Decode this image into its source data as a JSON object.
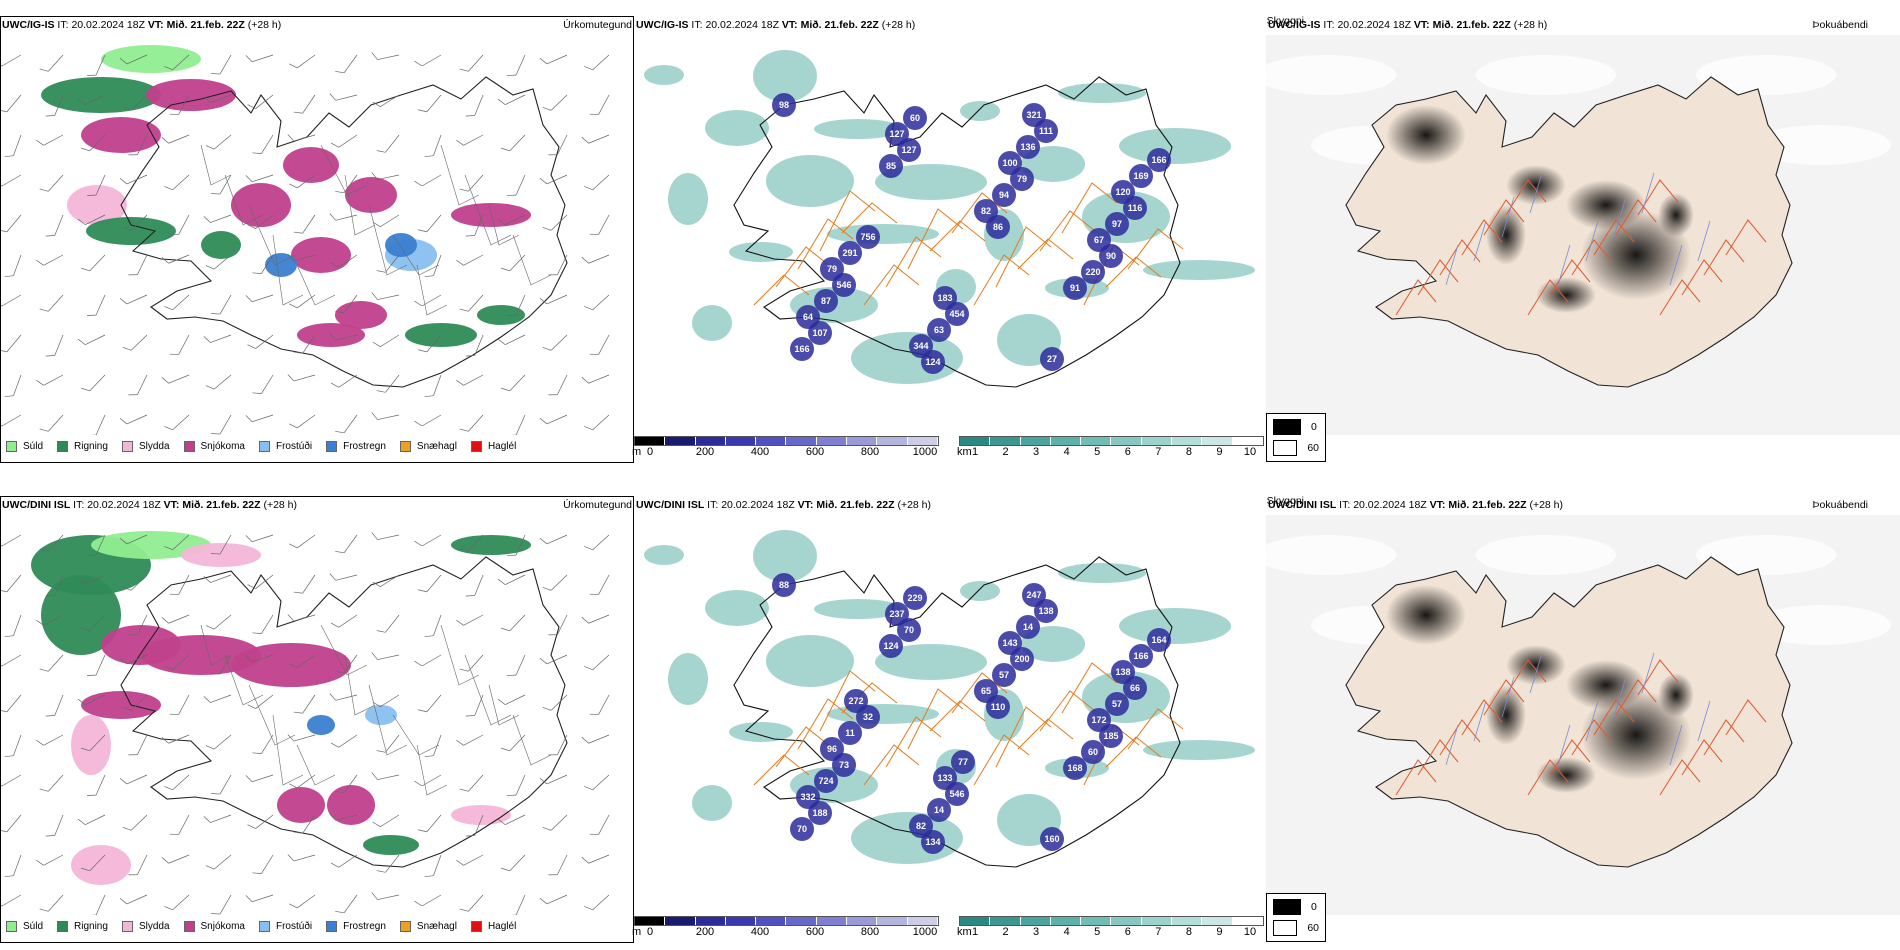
{
  "rows": [
    {
      "precip_panel": {
        "title_model": "UWC/IG-IS",
        "title_it_prefix": "IT:",
        "title_it": "20.02.2024 18Z",
        "title_vt_prefix": "VT:",
        "title_vt": "Mið. 21.feb. 22Z",
        "title_lead": "(+28 h)",
        "right_label": "Úrkomutegund"
      },
      "cloud_panel": {
        "title_model": "UWC/IG-IS",
        "title_it_prefix": "IT:",
        "title_it": "20.02.2024 18Z",
        "title_vt_prefix": "VT:",
        "title_vt": "Mið. 21.feb. 22Z",
        "title_lead": "(+28 h)",
        "right_label": "Skyggni",
        "max_labels": [
          "98",
          "85",
          "86",
          "91",
          "166",
          "127",
          "82",
          "220",
          "107",
          "127",
          "94",
          "90",
          "64",
          "60",
          "79",
          "67",
          "87",
          "124",
          "100",
          "97",
          "546",
          "344",
          "136",
          "116",
          "79",
          "63",
          "111",
          "120",
          "291",
          "454",
          "321",
          "169",
          "756",
          "183",
          "27",
          "166"
        ]
      },
      "fog_panel": {
        "title_model": "UWC/IG-IS",
        "title_it_prefix": "IT:",
        "title_it": "20.02.2024 18Z",
        "title_vt_prefix": "VT:",
        "title_vt": "Mið. 21.feb. 22Z",
        "title_lead": "(+28 h)",
        "right_label": "Þokuábendi"
      }
    },
    {
      "precip_panel": {
        "title_model": "UWC/DINI ISL",
        "title_it_prefix": "IT:",
        "title_it": "20.02.2024 18Z",
        "title_vt_prefix": "VT:",
        "title_vt": "Mið. 21.feb. 22Z",
        "title_lead": "(+28 h)",
        "right_label": "Úrkomutegund"
      },
      "cloud_panel": {
        "title_model": "UWC/DINI ISL",
        "title_it_prefix": "IT:",
        "title_it": "20.02.2024 18Z",
        "title_vt_prefix": "VT:",
        "title_vt": "Mið. 21.feb. 22Z",
        "title_lead": "(+28 h)",
        "right_label": "Skyggni",
        "max_labels": [
          "88",
          "124",
          "110",
          "168",
          "70",
          "70",
          "65",
          "60",
          "188",
          "237",
          "57",
          "185",
          "332",
          "229",
          "200",
          "172",
          "724",
          "134",
          "143",
          "57",
          "73",
          "82",
          "14",
          "66",
          "96",
          "14",
          "138",
          "138",
          "11",
          "546",
          "247",
          "166",
          "32",
          "133",
          "160",
          "164",
          "272",
          "77"
        ]
      },
      "fog_panel": {
        "title_model": "UWC/DINI ISL",
        "title_it_prefix": "IT:",
        "title_it": "20.02.2024 18Z",
        "title_vt_prefix": "VT:",
        "title_vt": "Mið. 21.feb. 22Z",
        "title_lead": "(+28 h)",
        "right_label": "Þokuábendi"
      }
    }
  ],
  "precip_legend": [
    {
      "label": "Súld",
      "color": "#90ee90"
    },
    {
      "label": "Rigning",
      "color": "#2e8b57"
    },
    {
      "label": "Slydda",
      "color": "#f4b6d8"
    },
    {
      "label": "Snjókoma",
      "color": "#c0408c"
    },
    {
      "label": "Frostúði",
      "color": "#87bff0"
    },
    {
      "label": "Frostregn",
      "color": "#3a7fd0"
    },
    {
      "label": "Snæhagl",
      "color": "#f0a020"
    },
    {
      "label": "Haglél",
      "color": "#e01010"
    }
  ],
  "cloudbase_scale": {
    "unit": "m",
    "ticks": [
      "0",
      "200",
      "400",
      "600",
      "800",
      "1000"
    ],
    "colors": [
      "#000000",
      "#1a1a6e",
      "#2b2b9a",
      "#3a3ab0",
      "#5050c0",
      "#6868c8",
      "#8080d0",
      "#9a9ad8",
      "#b4b4e0",
      "#cdcde8"
    ]
  },
  "visibility_scale": {
    "unit": "km",
    "ticks": [
      "1",
      "2",
      "3",
      "4",
      "5",
      "6",
      "7",
      "8",
      "9",
      "10"
    ],
    "colors": [
      "#2a8a80",
      "#3a9890",
      "#4aa59c",
      "#5cb2a8",
      "#70bdb4",
      "#86c8c0",
      "#9cd3cc",
      "#b4ded8",
      "#cce8e4",
      "#ffffff"
    ]
  },
  "fog_scale": {
    "values": [
      "0",
      "60"
    ],
    "colors": [
      "#000000",
      "#ffffff"
    ]
  }
}
